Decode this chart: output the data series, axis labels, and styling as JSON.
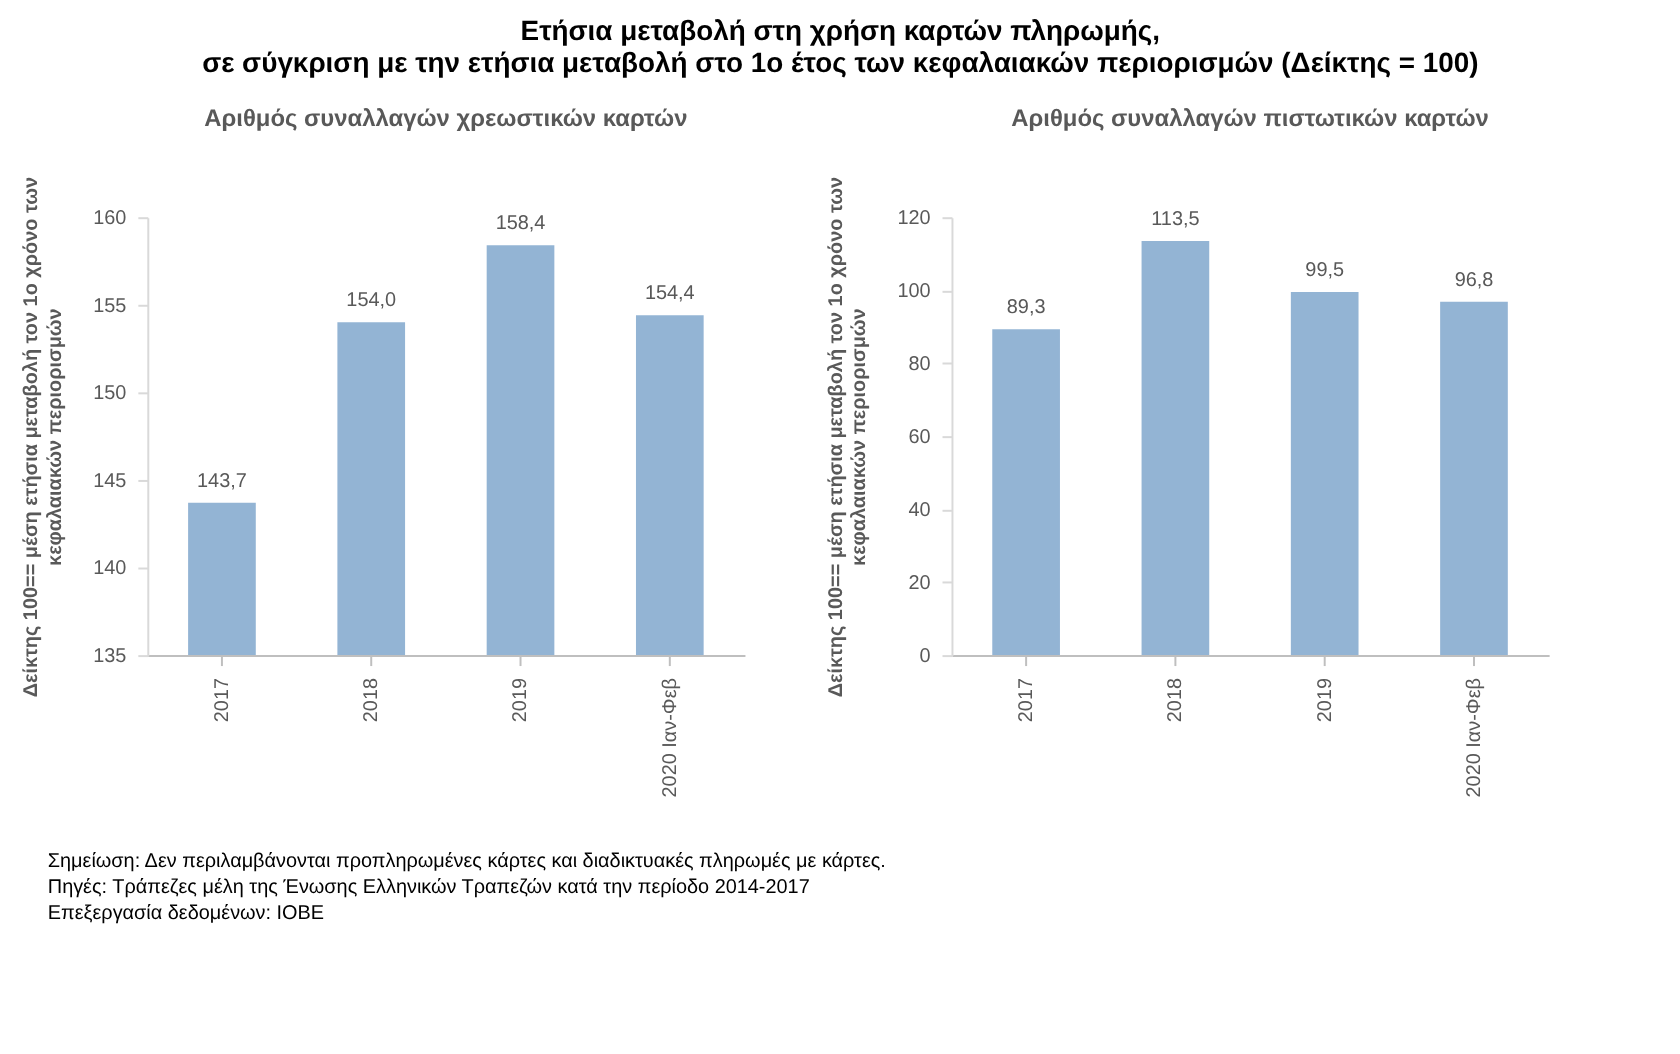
{
  "chart_data": [
    {
      "type": "bar",
      "title": "Ετήσια μεταβολή στη χρήση καρτών πληρωμής,\nσε σύγκριση με την ετήσια μεταβολή στο 1ο έτος των κεφαλαιακών περιορισμών (Δείκτης = 100)",
      "subtitle": "Αριθμός συναλλαγών χρεωστικών καρτών",
      "ylabel": "Δείκτης 100== μέση ετήσια μεταβολή τον 1ο χρόνο των\nκεφαλαιακών περιορισμών",
      "categories": [
        "2017",
        "2018",
        "2019",
        "2020 Ιαν-Φεβ"
      ],
      "values": [
        143.7,
        154.0,
        158.4,
        154.4
      ],
      "value_labels": [
        "143,7",
        "154,0",
        "158,4",
        "154,4"
      ],
      "color": "#93b4d4",
      "ylim": [
        135,
        160
      ],
      "yticks": [
        135,
        140,
        145,
        150,
        155,
        160
      ],
      "grid": false,
      "annotations": [
        "Σημείωση: Δεν περιλαμβάνονται προπληρωμένες κάρτες και διαδικτυακές πληρωμές με κάρτες.",
        "Πηγές: Τράπεζες μέλη της Ένωσης Ελληνικών Τραπεζών κατά την περίοδο 2014-2017",
        "Επεξεργασία δεδομένων: ΙΟΒΕ"
      ]
    },
    {
      "type": "bar",
      "subtitle": "Αριθμός συναλλαγών πιστωτικών καρτών",
      "ylabel": "Δείκτης 100== μέση ετήσια μεταβολή τον 1ο χρόνο των\nκεφαλαιακών περιορισμών",
      "categories": [
        "2017",
        "2018",
        "2019",
        "2020 Ιαν-Φεβ"
      ],
      "values": [
        89.3,
        113.5,
        99.5,
        96.8
      ],
      "value_labels": [
        "89,3",
        "113,5",
        "99,5",
        "96,8"
      ],
      "color": "#93b4d4",
      "ylim": [
        0,
        120
      ],
      "yticks": [
        0,
        20,
        40,
        60,
        80,
        100,
        120
      ],
      "grid": false
    }
  ]
}
